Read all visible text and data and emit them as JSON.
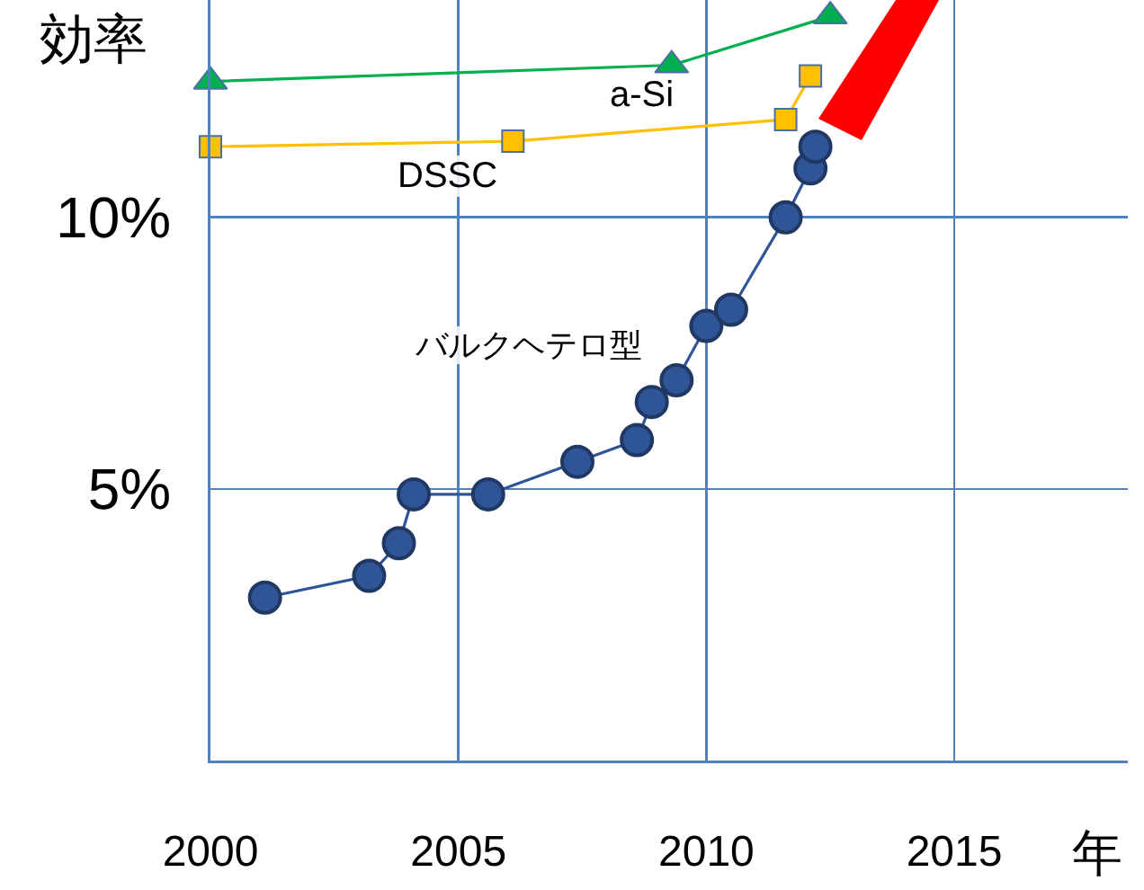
{
  "chart_data": {
    "type": "line",
    "xlabel": "年",
    "ylabel": "効率",
    "xlim": [
      2000,
      2018.5
    ],
    "ylim": [
      0,
      14
    ],
    "xticks": [
      2000,
      2005,
      2010,
      2015
    ],
    "yticks": [
      {
        "value": 5,
        "label": "5%"
      },
      {
        "value": 10,
        "label": "10%"
      }
    ],
    "grid": true,
    "legend": false,
    "series": [
      {
        "name": "a-Si",
        "color": "#00b050",
        "marker": "triangle",
        "x": [
          2000,
          2009.3,
          2012.5
        ],
        "values": [
          12.5,
          12.8,
          13.7
        ]
      },
      {
        "name": "DSSC",
        "color": "#ffc000",
        "marker": "square",
        "x": [
          2000,
          2006.1,
          2011.6,
          2012.1
        ],
        "values": [
          11.3,
          11.4,
          11.8,
          12.6
        ]
      },
      {
        "name": "バルクヘテロ型",
        "color": "#2f5597",
        "marker": "circle",
        "x": [
          2001.1,
          2003.2,
          2003.8,
          2004.1,
          2005.6,
          2007.4,
          2008.6,
          2008.9,
          2009.4,
          2010,
          2010.5,
          2011.6,
          2012.1,
          2012.2
        ],
        "values": [
          3.0,
          3.4,
          4.0,
          4.9,
          4.9,
          5.5,
          5.9,
          6.6,
          7.0,
          8.0,
          8.3,
          10.0,
          10.9,
          11.3
        ]
      }
    ]
  }
}
